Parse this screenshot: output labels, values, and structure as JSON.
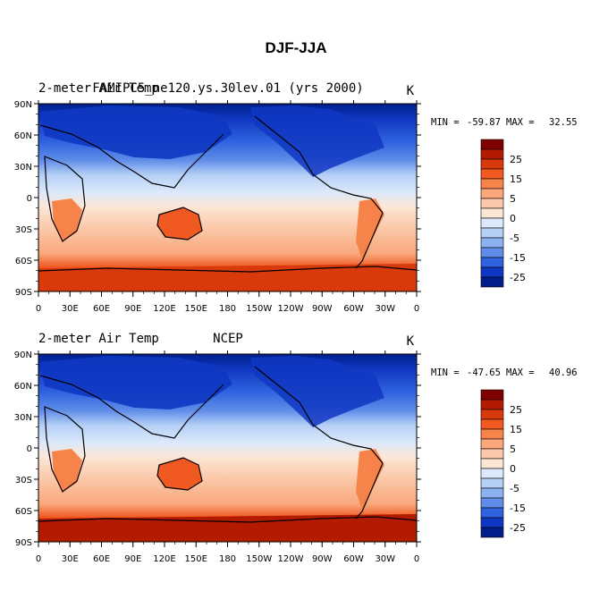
{
  "figure": {
    "title": "DJF-JJA"
  },
  "panels": [
    {
      "left_label": "2-meter Air Temp",
      "center_label": "FAMIPC5_ne120.ys.30lev.01 (yrs 2000)",
      "units_label": "K",
      "stats": {
        "min_label": "MIN =",
        "min_value": "-59.87",
        "max_label": "MAX =",
        "max_value": "32.55"
      }
    },
    {
      "left_label": "2-meter Air Temp",
      "center_label": "NCEP",
      "units_label": "K",
      "stats": {
        "min_label": "MIN =",
        "min_value": "-47.65",
        "max_label": "MAX =",
        "max_value": "40.96"
      }
    }
  ],
  "axes": {
    "lat_ticks": [
      "90N",
      "60N",
      "30N",
      "0",
      "30S",
      "60S",
      "90S"
    ],
    "lon_ticks": [
      "0",
      "30E",
      "60E",
      "90E",
      "120E",
      "150E",
      "180",
      "150W",
      "120W",
      "90W",
      "60W",
      "30W",
      "0"
    ]
  },
  "colorbar": {
    "labels": [
      "25",
      "15",
      "5",
      "0",
      "-5",
      "-15",
      "-25"
    ],
    "colors": [
      "#7f0000",
      "#b31b00",
      "#d93a0c",
      "#f05a22",
      "#f5834a",
      "#f9a77b",
      "#fbc9aa",
      "#fde6d6",
      "#dbe9fb",
      "#b5cff5",
      "#8bb1ef",
      "#5f8ce8",
      "#2f62df",
      "#1037c2",
      "#001f8a"
    ],
    "tick_boundaries": [
      25,
      15,
      5,
      0,
      -5,
      -15,
      -25
    ]
  },
  "chart_data": {
    "type": "heatmap",
    "title": "DJF-JJA",
    "variable": "2-meter Air Temp",
    "units": "K",
    "projection": "cylindrical equidistant",
    "lat_range": [
      -90,
      90
    ],
    "lon_range": [
      0,
      360
    ],
    "contour_levels": [
      -30,
      -25,
      -20,
      -15,
      -10,
      -5,
      -2,
      0,
      2,
      5,
      10,
      15,
      20,
      25,
      30
    ],
    "panels": [
      {
        "name": "FAMIPC5_ne120.ys.30lev.01 (yrs 2000)",
        "min": -59.87,
        "max": 32.55
      },
      {
        "name": "NCEP",
        "min": -47.65,
        "max": 40.96
      }
    ]
  }
}
